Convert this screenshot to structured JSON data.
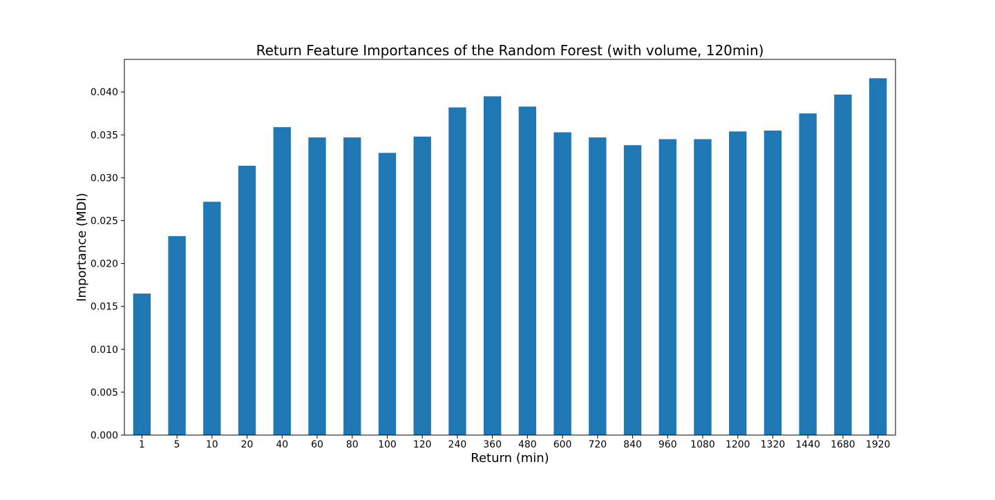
{
  "chart_data": {
    "type": "bar",
    "title": "Return Feature Importances of the Random Forest (with volume, 120min)",
    "xlabel": "Return (min)",
    "ylabel": "Importance (MDI)",
    "categories": [
      "1",
      "5",
      "10",
      "20",
      "40",
      "60",
      "80",
      "100",
      "120",
      "240",
      "360",
      "480",
      "600",
      "720",
      "840",
      "960",
      "1080",
      "1200",
      "1320",
      "1440",
      "1680",
      "1920"
    ],
    "values": [
      0.0165,
      0.0232,
      0.0272,
      0.0314,
      0.0359,
      0.0347,
      0.0347,
      0.0329,
      0.0348,
      0.0382,
      0.0395,
      0.0383,
      0.0353,
      0.0347,
      0.0338,
      0.0345,
      0.0345,
      0.0354,
      0.0355,
      0.0375,
      0.0397,
      0.0416
    ],
    "ylim": [
      0,
      0.0438
    ],
    "yticks": [
      "0.000",
      "0.005",
      "0.010",
      "0.015",
      "0.020",
      "0.025",
      "0.030",
      "0.035",
      "0.040"
    ],
    "ytick_values": [
      0,
      0.005,
      0.01,
      0.015,
      0.02,
      0.025,
      0.03,
      0.035,
      0.04
    ],
    "grid": false,
    "legend": "none",
    "bar_color": "#1f77b4"
  }
}
